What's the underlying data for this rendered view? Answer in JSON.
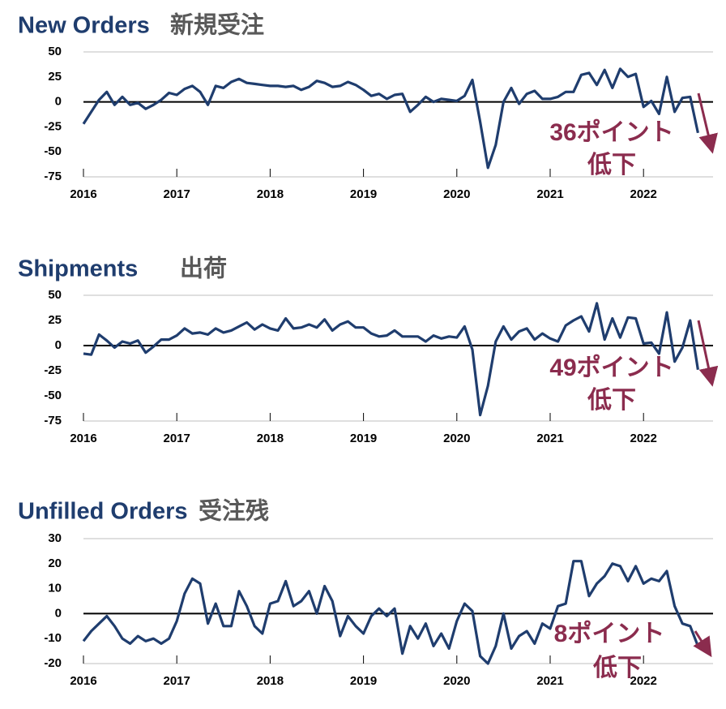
{
  "chart_data": [
    {
      "type": "line",
      "title": "New Orders",
      "subtitle": "新規受注",
      "annotation": [
        "36ポイント",
        "低下"
      ],
      "categories": [
        "2016",
        null,
        null,
        null,
        null,
        null,
        null,
        null,
        null,
        null,
        null,
        null,
        "2017",
        null,
        null,
        null,
        null,
        null,
        null,
        null,
        null,
        null,
        null,
        null,
        "2018",
        null,
        null,
        null,
        null,
        null,
        null,
        null,
        null,
        null,
        null,
        null,
        "2019",
        null,
        null,
        null,
        null,
        null,
        null,
        null,
        null,
        null,
        null,
        null,
        "2020",
        null,
        null,
        null,
        null,
        null,
        null,
        null,
        null,
        null,
        null,
        null,
        "2021",
        null,
        null,
        null,
        null,
        null,
        null,
        null,
        null,
        null,
        null,
        null,
        "2022",
        null,
        null,
        null,
        null,
        null,
        null,
        null
      ],
      "series": [
        {
          "color": "#1f3d6e",
          "values": [
            -22,
            -10,
            2,
            10,
            -3,
            5,
            -3,
            -1,
            -7,
            -3,
            2,
            9,
            7,
            13,
            16,
            10,
            -3,
            16,
            14,
            20,
            23,
            19,
            18,
            17,
            16,
            16,
            15,
            16,
            12,
            15,
            21,
            19,
            15,
            16,
            20,
            17,
            12,
            6,
            8,
            3,
            7,
            8,
            -10,
            -3,
            5,
            0,
            3,
            2,
            1,
            6,
            22,
            -20,
            -66,
            -43,
            0,
            14,
            -2,
            8,
            11,
            3,
            3,
            5,
            10,
            10,
            27,
            29,
            17,
            32,
            14,
            33,
            25,
            28,
            -5,
            1,
            -12,
            25,
            -10,
            4,
            5,
            -31
          ]
        }
      ],
      "ylim": [
        -75,
        50
      ],
      "yticks": [
        -75,
        -50,
        -25,
        0,
        25,
        50
      ],
      "annotation_color": "#8b2c4e"
    },
    {
      "type": "line",
      "title": "Shipments",
      "subtitle": "出荷",
      "annotation": [
        "49ポイント",
        "低下"
      ],
      "categories": [
        "2016",
        null,
        null,
        null,
        null,
        null,
        null,
        null,
        null,
        null,
        null,
        null,
        "2017",
        null,
        null,
        null,
        null,
        null,
        null,
        null,
        null,
        null,
        null,
        null,
        "2018",
        null,
        null,
        null,
        null,
        null,
        null,
        null,
        null,
        null,
        null,
        null,
        "2019",
        null,
        null,
        null,
        null,
        null,
        null,
        null,
        null,
        null,
        null,
        null,
        "2020",
        null,
        null,
        null,
        null,
        null,
        null,
        null,
        null,
        null,
        null,
        null,
        "2021",
        null,
        null,
        null,
        null,
        null,
        null,
        null,
        null,
        null,
        null,
        null,
        "2022",
        null,
        null,
        null,
        null,
        null,
        null,
        null
      ],
      "series": [
        {
          "color": "#1f3d6e",
          "values": [
            -8,
            -9,
            11,
            5,
            -2,
            4,
            2,
            5,
            -7,
            -1,
            6,
            6,
            10,
            17,
            12,
            13,
            11,
            17,
            13,
            15,
            19,
            23,
            16,
            21,
            17,
            15,
            27,
            17,
            18,
            21,
            18,
            26,
            15,
            21,
            24,
            18,
            18,
            12,
            9,
            10,
            15,
            9,
            9,
            9,
            4,
            10,
            7,
            9,
            8,
            19,
            -4,
            -69,
            -40,
            4,
            19,
            6,
            14,
            17,
            6,
            12,
            7,
            4,
            20,
            25,
            29,
            14,
            42,
            6,
            27,
            8,
            28,
            27,
            2,
            3,
            -8,
            33,
            -16,
            -2,
            25,
            -24
          ]
        }
      ],
      "ylim": [
        -75,
        50
      ],
      "yticks": [
        -75,
        -50,
        -25,
        0,
        25,
        50
      ],
      "annotation_color": "#8b2c4e"
    },
    {
      "type": "line",
      "title": "Unfilled Orders",
      "subtitle": "受注残",
      "annotation": [
        "8ポイント",
        "低下"
      ],
      "categories": [
        "2016",
        null,
        null,
        null,
        null,
        null,
        null,
        null,
        null,
        null,
        null,
        null,
        "2017",
        null,
        null,
        null,
        null,
        null,
        null,
        null,
        null,
        null,
        null,
        null,
        "2018",
        null,
        null,
        null,
        null,
        null,
        null,
        null,
        null,
        null,
        null,
        null,
        "2019",
        null,
        null,
        null,
        null,
        null,
        null,
        null,
        null,
        null,
        null,
        null,
        "2020",
        null,
        null,
        null,
        null,
        null,
        null,
        null,
        null,
        null,
        null,
        null,
        "2021",
        null,
        null,
        null,
        null,
        null,
        null,
        null,
        null,
        null,
        null,
        null,
        "2022",
        null,
        null,
        null,
        null,
        null,
        null,
        null
      ],
      "series": [
        {
          "color": "#1f3d6e",
          "values": [
            -11,
            -7,
            -4,
            -1,
            -5,
            -10,
            -12,
            -9,
            -11,
            -10,
            -12,
            -10,
            -3,
            8,
            14,
            12,
            -4,
            4,
            -5,
            -5,
            9,
            3,
            -5,
            -8,
            4,
            5,
            13,
            3,
            5,
            9,
            0,
            11,
            5,
            -9,
            -1,
            -5,
            -8,
            -1,
            2,
            -1,
            2,
            -16,
            -5,
            -10,
            -4,
            -13,
            -8,
            -14,
            -3,
            4,
            1,
            -17,
            -20,
            -13,
            0,
            -14,
            -9,
            -7,
            -12,
            -4,
            -6,
            3,
            4,
            21,
            21,
            7,
            12,
            15,
            20,
            19,
            13,
            19,
            12,
            14,
            13,
            17,
            3,
            -4,
            -5,
            -13
          ]
        }
      ],
      "ylim": [
        -20,
        30
      ],
      "yticks": [
        -20,
        -10,
        0,
        10,
        20,
        30
      ],
      "annotation_color": "#8b2c4e"
    }
  ]
}
